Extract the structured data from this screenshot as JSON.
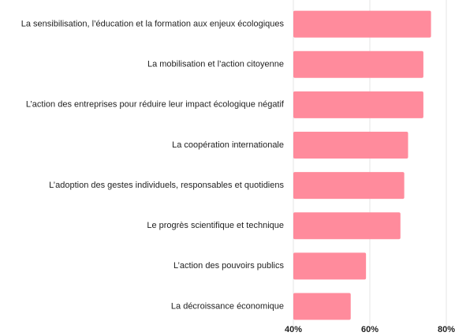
{
  "chart_data": {
    "type": "bar",
    "orientation": "horizontal",
    "categories": [
      "La sensibilisation, l’éducation et la formation aux enjeux écologiques",
      "La mobilisation et l’action citoyenne",
      "L’action des entreprises pour réduire leur impact écologique négatif",
      "La coopération internationale",
      "L’adoption des gestes individuels, responsables et quotidiens",
      "Le progrès scientifique et technique",
      "L’action des pouvoirs publics",
      "La décroissance économique"
    ],
    "values": [
      76,
      74,
      74,
      70,
      69,
      68,
      59,
      55
    ],
    "color": "#ff8b9c",
    "xlim": [
      40,
      80
    ],
    "xticks": [
      {
        "value": 40,
        "label": "40%"
      },
      {
        "value": 60,
        "label": "60%"
      },
      {
        "value": 80,
        "label": "80%"
      }
    ],
    "grid": true
  }
}
